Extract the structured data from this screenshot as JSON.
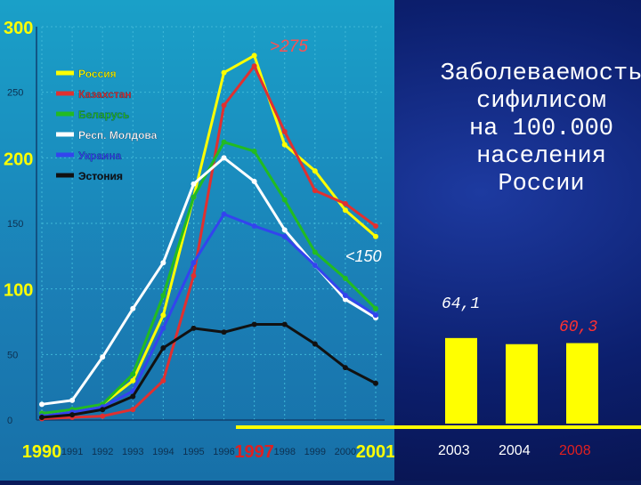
{
  "slide": {
    "title": "Заболеваемость\nсифилисом\nна 100.000\nнаселения\nРоссии",
    "annotations": [
      ">275",
      "<150"
    ],
    "colors": {
      "background": "#0c1f6e",
      "bars": "#ffff00",
      "baseline": "#ffff00"
    }
  },
  "chart_data": [
    {
      "type": "line",
      "xlabel": "",
      "ylabel": "",
      "x": [
        1990,
        1991,
        1992,
        1993,
        1994,
        1995,
        1996,
        1997,
        1998,
        1999,
        2000,
        2001
      ],
      "x_tick_labels": [
        "1990",
        "1991",
        "1992",
        "1993",
        "1994",
        "1995",
        "1996",
        "1997",
        "1998",
        "1999",
        "2000",
        "2001"
      ],
      "x_tick_highlight": [
        "1990",
        "1997",
        "2001"
      ],
      "ylim": [
        0,
        300
      ],
      "y_ticks": [
        0,
        50,
        100,
        150,
        200,
        250,
        300
      ],
      "y_tick_labels": [
        "0",
        "50",
        "100",
        "150",
        "200",
        "250",
        "300"
      ],
      "legend_position": "top-left",
      "series": [
        {
          "name": "Россия",
          "color": "#ffff00",
          "values": [
            5,
            7,
            12,
            30,
            80,
            170,
            265,
            278,
            210,
            190,
            160,
            140
          ]
        },
        {
          "name": "Казахстан",
          "color": "#e03030",
          "values": [
            1,
            2,
            3,
            8,
            30,
            110,
            240,
            270,
            220,
            175,
            165,
            148
          ]
        },
        {
          "name": "Беларусь",
          "color": "#22bb22",
          "values": [
            5,
            8,
            12,
            35,
            95,
            170,
            212,
            205,
            168,
            128,
            108,
            85
          ]
        },
        {
          "name": "Респ. Молдова",
          "color": "#ffffff",
          "values": [
            12,
            15,
            48,
            85,
            120,
            180,
            200,
            182,
            145,
            118,
            92,
            78
          ]
        },
        {
          "name": "Украина",
          "color": "#3344ee",
          "values": [
            3,
            6,
            10,
            22,
            70,
            120,
            157,
            148,
            140,
            118,
            95,
            80
          ]
        },
        {
          "name": "Эстония",
          "color": "#111111",
          "values": [
            2,
            4,
            8,
            18,
            55,
            70,
            67,
            73,
            73,
            58,
            40,
            28
          ]
        }
      ]
    },
    {
      "type": "bar",
      "categories": [
        "2003",
        "2004",
        "2008"
      ],
      "values": [
        64.1,
        59.5,
        60.3
      ],
      "data_labels": [
        "64,1",
        "",
        "60,3"
      ],
      "category_colors": [
        "#ffffff",
        "#ffffff",
        "#e02020"
      ],
      "ylim": [
        0,
        100
      ]
    }
  ]
}
